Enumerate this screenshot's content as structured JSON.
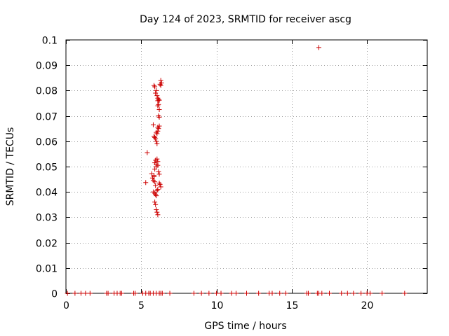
{
  "chart_data": {
    "type": "scatter",
    "title": "Day 124 of 2023, SRMTID for receiver ascg",
    "xlabel": "GPS time / hours",
    "ylabel": "SRMTID / TECUs",
    "xlim": [
      0,
      24
    ],
    "ylim": [
      0,
      0.1
    ],
    "grid": true,
    "legend": "none",
    "xticks": [
      0,
      5,
      10,
      15,
      20
    ],
    "xtick_labels": [
      "0",
      "5",
      "10",
      "15",
      "20"
    ],
    "yticks": [
      0,
      0.01,
      0.02,
      0.03,
      0.04,
      0.05,
      0.06,
      0.07,
      0.08,
      0.09,
      0.1
    ],
    "ytick_labels": [
      "0",
      "0.01",
      "0.02",
      "0.03",
      "0.04",
      "0.05",
      "0.06",
      "0.07",
      "0.08",
      "0.09",
      "0.1"
    ],
    "marker": "+",
    "colors": {
      "points": "#cc0000",
      "grid": "#a0a0a0",
      "axis": "#000000"
    },
    "series": [
      {
        "name": "SRMTID",
        "x": [
          0.1,
          0.6,
          1.0,
          1.3,
          1.6,
          2.7,
          2.8,
          3.2,
          3.4,
          3.6,
          3.7,
          4.5,
          4.6,
          5.1,
          5.3,
          5.5,
          5.6,
          5.8,
          6.0,
          6.2,
          6.3,
          6.4,
          6.9,
          8.5,
          9.0,
          9.5,
          10.0,
          10.3,
          11.0,
          11.3,
          12.0,
          12.8,
          13.5,
          13.7,
          14.2,
          14.6,
          16.0,
          16.1,
          16.7,
          16.8,
          17.0,
          17.5,
          18.3,
          18.7,
          19.1,
          19.6,
          20.0,
          20.2,
          21.0,
          22.5,
          16.8,
          5.4,
          5.3,
          5.7,
          5.75,
          5.8,
          5.85,
          5.9,
          5.9,
          5.95,
          6.0,
          6.0,
          6.05,
          6.1,
          6.1,
          6.15,
          6.2,
          6.2,
          6.25,
          6.3,
          6.3,
          6.35,
          5.85,
          5.9,
          5.95,
          6.0,
          6.05,
          6.1,
          6.1,
          6.15,
          6.2,
          6.25,
          6.3,
          5.8,
          5.85,
          5.9,
          5.95,
          6.0,
          6.05,
          6.1,
          6.15,
          6.2,
          5.8,
          5.9,
          5.95,
          6.0,
          6.05,
          6.1,
          6.15,
          6.2,
          6.2,
          5.9,
          5.95,
          6.0,
          6.05,
          6.1,
          6.1,
          6.15,
          5.85,
          5.9,
          5.95,
          6.0,
          6.05,
          6.1
        ],
        "y": [
          0,
          0,
          0,
          0,
          0,
          0,
          0,
          0,
          0,
          0,
          0,
          0,
          0,
          0,
          0,
          0,
          0,
          0,
          0,
          0,
          0,
          0,
          0,
          0,
          0,
          0,
          0,
          0,
          0,
          0,
          0,
          0,
          0,
          0,
          0,
          0,
          0,
          0,
          0,
          0,
          0,
          0,
          0,
          0,
          0,
          0,
          0,
          0,
          0,
          0,
          0.097,
          0.0555,
          0.0437,
          0.0472,
          0.0455,
          0.0445,
          0.0465,
          0.049,
          0.0515,
          0.0525,
          0.051,
          0.05,
          0.053,
          0.052,
          0.0505,
          0.048,
          0.047,
          0.0435,
          0.043,
          0.042,
          0.084,
          0.083,
          0.082,
          0.0815,
          0.079,
          0.08,
          0.078,
          0.077,
          0.076,
          0.0765,
          0.0762,
          0.0825,
          0.082,
          0.0665,
          0.062,
          0.0615,
          0.061,
          0.06,
          0.059,
          0.064,
          0.065,
          0.066,
          0.04,
          0.0395,
          0.039,
          0.0385,
          0.0405,
          0.041,
          0.07,
          0.0695,
          0.0725,
          0.036,
          0.035,
          0.033,
          0.032,
          0.031,
          0.074,
          0.0745,
          0.046,
          0.044,
          0.0425,
          0.0635,
          0.063,
          0.0655
        ]
      }
    ]
  }
}
